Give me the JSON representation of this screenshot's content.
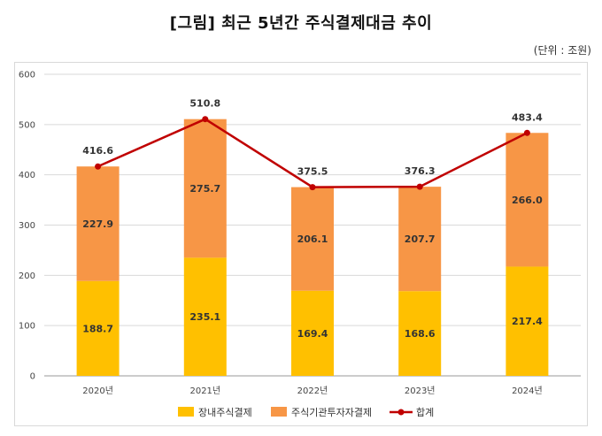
{
  "title": "[그림] 최근 5년간 주식결제대금 추이",
  "unit": "(단위 : 조원)",
  "colors": {
    "series1": "#FFC000",
    "series2": "#F79646",
    "total": "#C00000",
    "grid": "#d9d9d9",
    "axis": "#999999"
  },
  "chart_data": {
    "type": "bar",
    "stacked": true,
    "categories": [
      "2020년",
      "2021년",
      "2022년",
      "2023년",
      "2024년"
    ],
    "series": [
      {
        "name": "장내주식결제",
        "values": [
          188.7,
          235.1,
          169.4,
          168.6,
          217.4
        ],
        "labels": [
          "188.7",
          "235.1",
          "169.4",
          "168.6",
          "217.4"
        ]
      },
      {
        "name": "주식기관투자자결제",
        "values": [
          227.9,
          275.7,
          206.1,
          207.7,
          266.0
        ],
        "labels": [
          "227.9",
          "275.7",
          "206.1",
          "207.7",
          "266.0"
        ]
      }
    ],
    "line": {
      "name": "합계",
      "values": [
        416.6,
        510.8,
        375.5,
        376.3,
        483.4
      ],
      "labels": [
        "416.6",
        "510.8",
        "375.5",
        "376.3",
        "483.4"
      ]
    },
    "ylim": [
      0,
      600
    ],
    "yticks": [
      "0",
      "100",
      "200",
      "300",
      "400",
      "500",
      "600"
    ],
    "grid": "horizontal",
    "legend_position": "bottom"
  }
}
